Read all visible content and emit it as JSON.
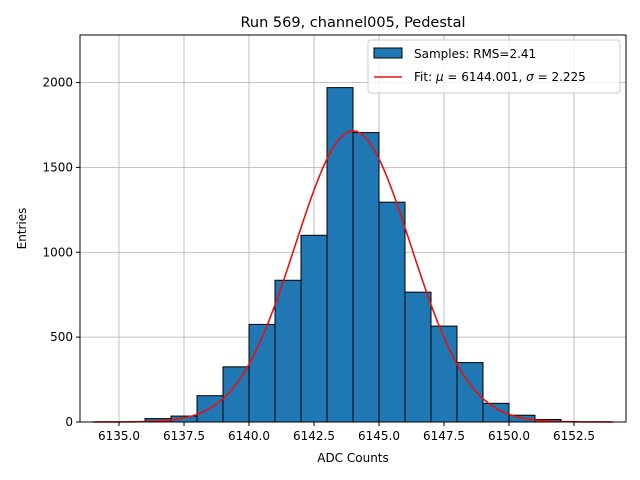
{
  "chart_data": {
    "type": "bar",
    "title": "Run 569, channel005, Pedestal",
    "xlabel": "ADC Counts",
    "ylabel": "Entries",
    "xlim": [
      6133.5,
      6154.5
    ],
    "ylim": [
      0,
      2280
    ],
    "xticks": [
      6135.0,
      6137.5,
      6140.0,
      6142.5,
      6145.0,
      6147.5,
      6150.0,
      6152.5
    ],
    "xtick_labels": [
      "6135.0",
      "6137.5",
      "6140.0",
      "6142.5",
      "6145.0",
      "6147.5",
      "6150.0",
      "6152.5"
    ],
    "yticks": [
      0,
      500,
      1000,
      1500,
      2000
    ],
    "ytick_labels": [
      "0",
      "500",
      "1000",
      "1500",
      "2000"
    ],
    "grid": true,
    "legend_position": "top-right",
    "histogram": {
      "name": "Samples: RMS=2.41",
      "bin_edges": [
        6136.0,
        6137.0,
        6138.0,
        6139.0,
        6140.0,
        6141.0,
        6142.0,
        6143.0,
        6144.0,
        6145.0,
        6146.0,
        6147.0,
        6148.0,
        6149.0,
        6150.0,
        6151.0,
        6152.0
      ],
      "counts": [
        20,
        35,
        155,
        325,
        575,
        835,
        1100,
        1970,
        1705,
        1295,
        765,
        565,
        350,
        110,
        40,
        15
      ]
    },
    "fit": {
      "name": "Fit: μ = 6144.001, σ = 2.225",
      "mu": 6144.001,
      "sigma": 2.225,
      "amplitude": 1715,
      "x_range": [
        6134.0,
        6154.0
      ]
    },
    "legend": {
      "hist_prefix": "Samples: RMS=2.41",
      "fit_prefix": "Fit: ",
      "mu_symbol": "μ",
      "fit_mu_text": " = 6144.001, ",
      "sigma_symbol": "σ",
      "fit_sigma_text": " = 2.225"
    }
  }
}
